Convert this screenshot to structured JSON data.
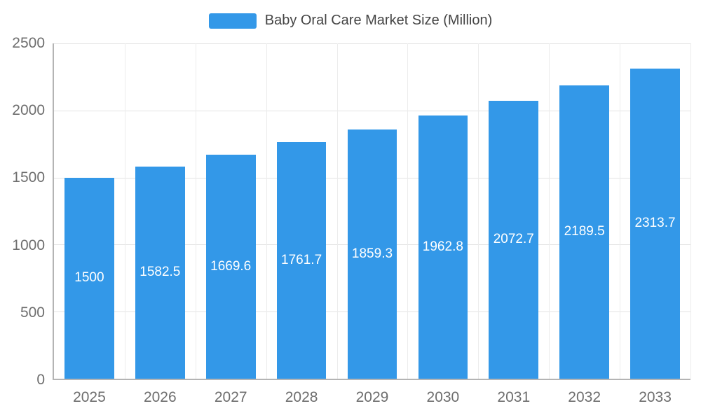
{
  "chart_data": {
    "type": "bar",
    "title": "Baby Oral Care Market Size (Million)",
    "categories": [
      "2025",
      "2026",
      "2027",
      "2028",
      "2029",
      "2030",
      "2031",
      "2032",
      "2033"
    ],
    "values": [
      1500,
      1582.5,
      1669.6,
      1761.7,
      1859.3,
      1962.8,
      2072.7,
      2189.5,
      2313.7
    ],
    "xlabel": "",
    "ylabel": "",
    "ylim": [
      0,
      2500
    ],
    "yticks": [
      0,
      500,
      1000,
      1500,
      2000,
      2500
    ],
    "bar_color": "#3398e8",
    "value_label_color": "#ffffff",
    "tick_label_color": "#6e6e6e",
    "grid": true,
    "legend_position": "top"
  }
}
